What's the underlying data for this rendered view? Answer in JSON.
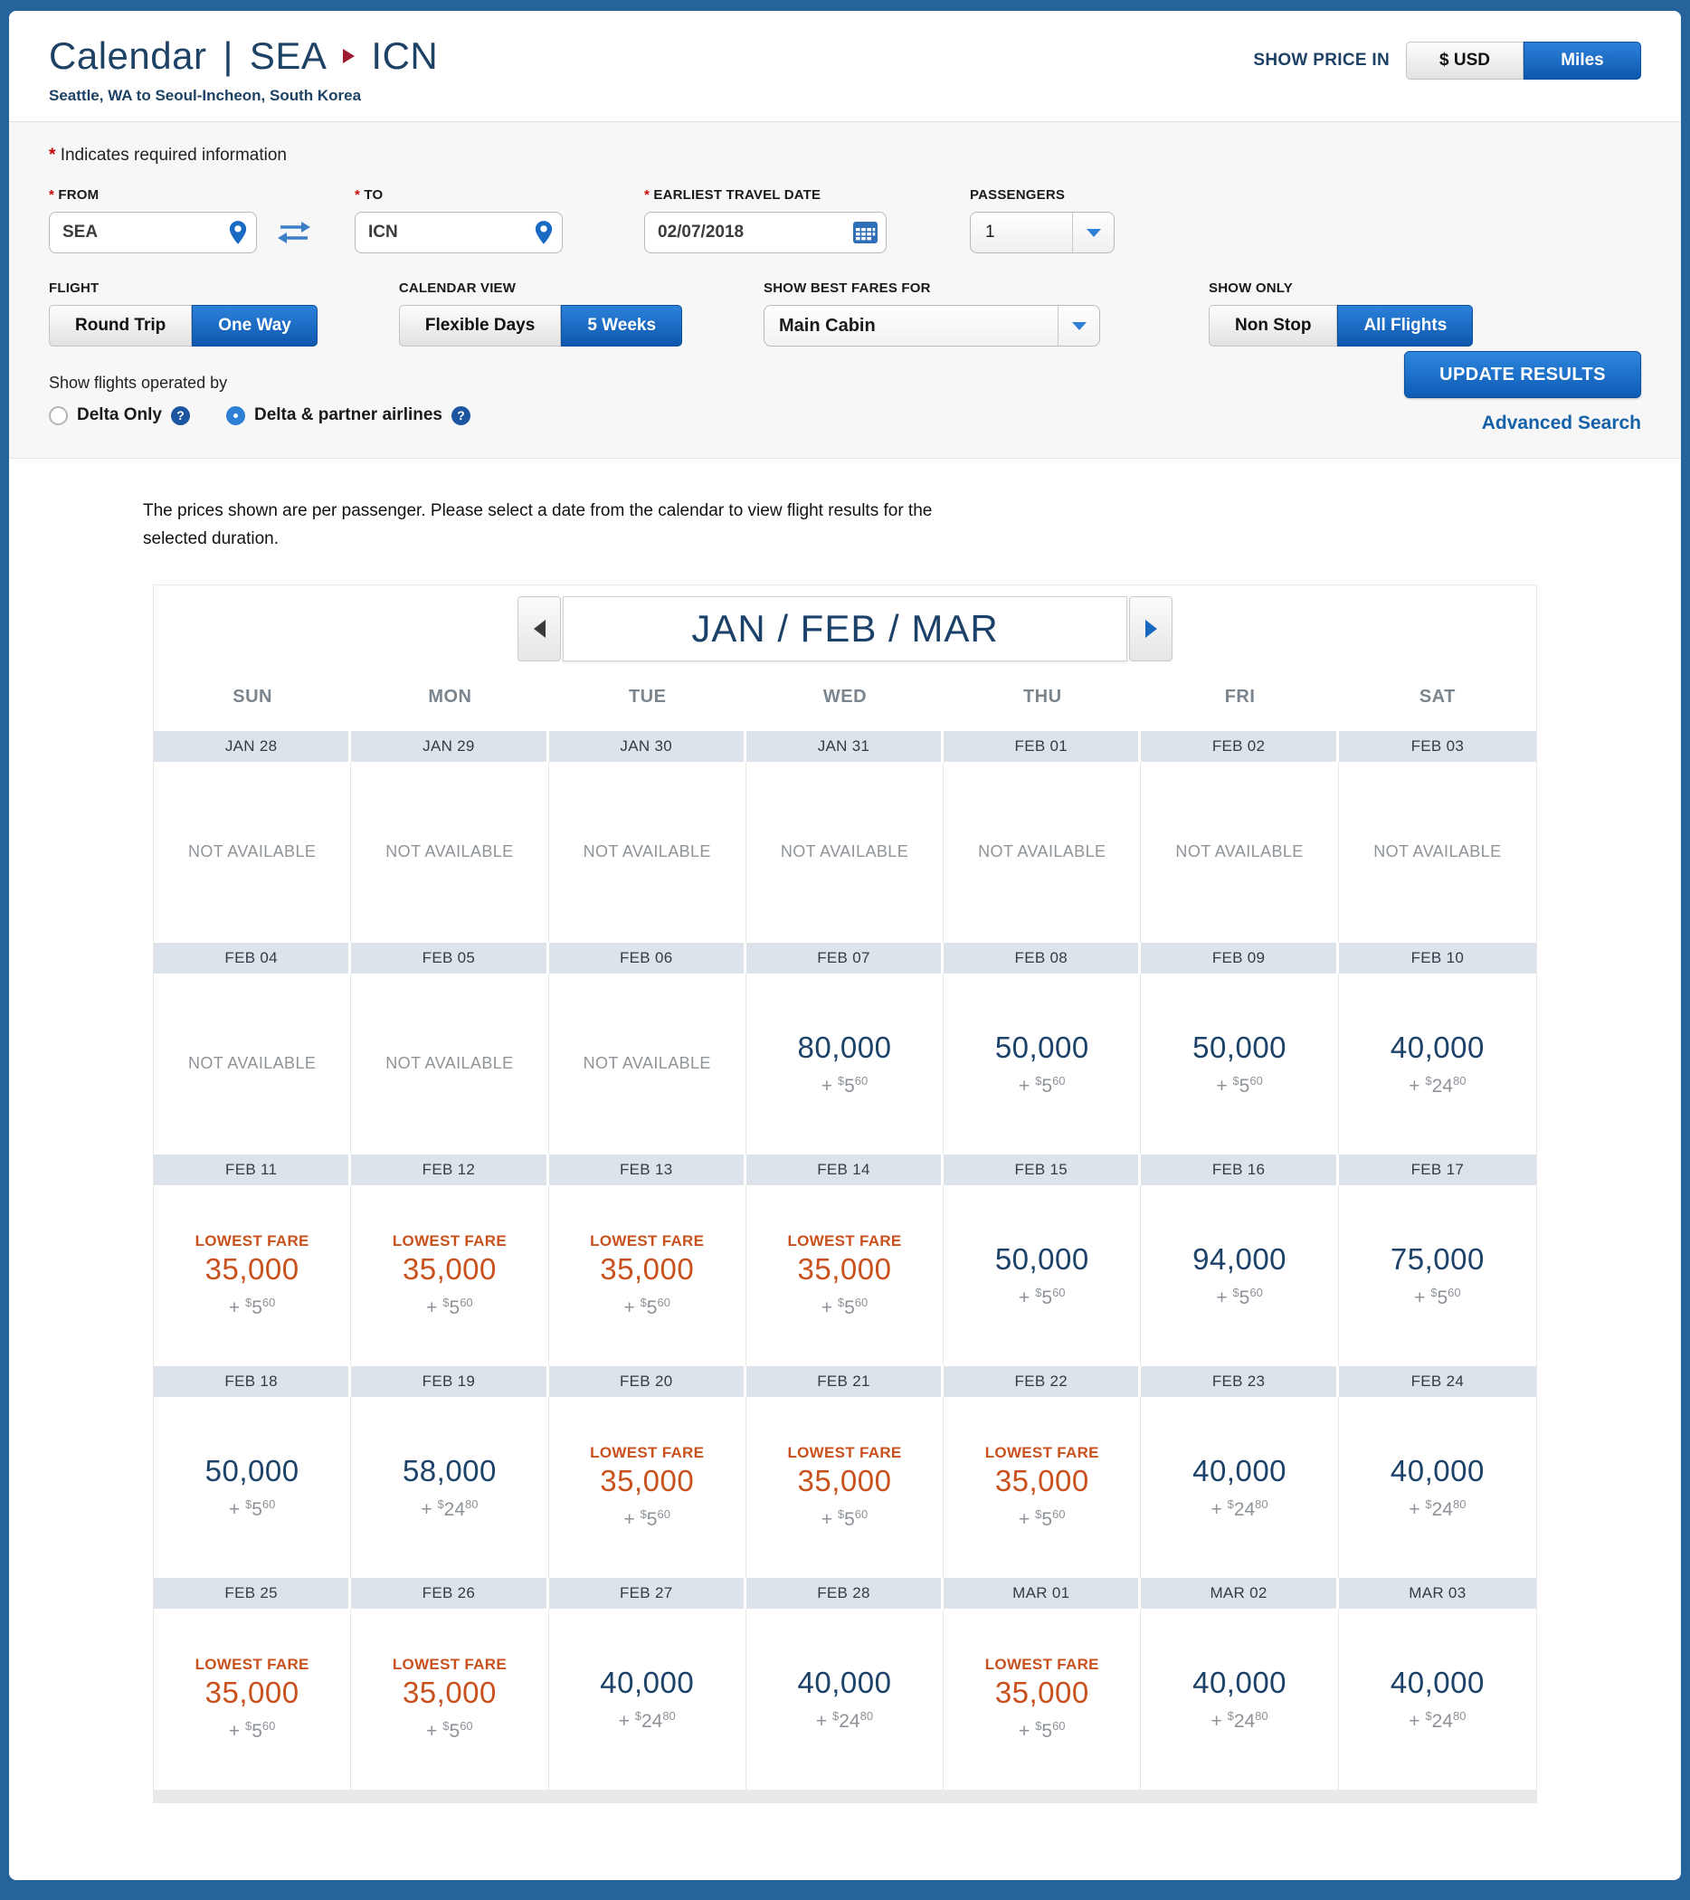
{
  "page": {
    "title_prefix": "Calendar",
    "title_separator": "|",
    "origin": "SEA",
    "destination": "ICN",
    "subtitle": "Seattle, WA to Seoul-Incheon, South Korea"
  },
  "price_toggle": {
    "label": "SHOW PRICE IN",
    "usd_label": "$ USD",
    "miles_label": "Miles",
    "selected": "Miles"
  },
  "form": {
    "required_marker": "*",
    "required_note": "Indicates required information",
    "from": {
      "label": "FROM",
      "value": "SEA"
    },
    "to": {
      "label": "TO",
      "value": "ICN"
    },
    "earliest_travel_date": {
      "label": "EARLIEST TRAVEL DATE",
      "value": "02/07/2018"
    },
    "passengers": {
      "label": "PASSENGERS",
      "value": "1"
    },
    "flight": {
      "label": "FLIGHT",
      "options": [
        "Round Trip",
        "One Way"
      ],
      "selected": "One Way"
    },
    "calendar_view": {
      "label": "CALENDAR VIEW",
      "options": [
        "Flexible Days",
        "5 Weeks"
      ],
      "selected": "5 Weeks"
    },
    "show_best_fares_for": {
      "label": "SHOW BEST FARES FOR",
      "value": "Main Cabin"
    },
    "show_only": {
      "label": "SHOW ONLY",
      "options": [
        "Non Stop",
        "All Flights"
      ],
      "selected": "All Flights"
    },
    "operated_by": {
      "label": "Show flights operated by",
      "options": [
        {
          "label": "Delta Only",
          "selected": false
        },
        {
          "label": "Delta & partner airlines",
          "selected": true
        }
      ]
    },
    "update_button": "UPDATE RESULTS",
    "advanced_search": "Advanced Search"
  },
  "notice": "The prices shown are per passenger. Please select a date from the calendar to view flight results for the selected duration.",
  "calendar": {
    "month_label": "JAN / FEB / MAR",
    "day_headers": [
      "SUN",
      "MON",
      "TUE",
      "WED",
      "THU",
      "FRI",
      "SAT"
    ],
    "not_available_label": "NOT AVAILABLE",
    "lowest_fare_label": "LOWEST FARE",
    "weeks": [
      {
        "dates": [
          "JAN 28",
          "JAN 29",
          "JAN 30",
          "JAN 31",
          "FEB 01",
          "FEB 02",
          "FEB 03"
        ],
        "fares": [
          {
            "na": true
          },
          {
            "na": true
          },
          {
            "na": true
          },
          {
            "na": true
          },
          {
            "na": true
          },
          {
            "na": true
          },
          {
            "na": true
          }
        ]
      },
      {
        "dates": [
          "FEB 04",
          "FEB 05",
          "FEB 06",
          "FEB 07",
          "FEB 08",
          "FEB 09",
          "FEB 10"
        ],
        "fares": [
          {
            "na": true
          },
          {
            "na": true
          },
          {
            "na": true
          },
          {
            "miles": "80,000",
            "tax_dollars": "5",
            "tax_cents": "60",
            "lowest": false
          },
          {
            "miles": "50,000",
            "tax_dollars": "5",
            "tax_cents": "60",
            "lowest": false
          },
          {
            "miles": "50,000",
            "tax_dollars": "5",
            "tax_cents": "60",
            "lowest": false
          },
          {
            "miles": "40,000",
            "tax_dollars": "24",
            "tax_cents": "80",
            "lowest": false
          }
        ]
      },
      {
        "dates": [
          "FEB 11",
          "FEB 12",
          "FEB 13",
          "FEB 14",
          "FEB 15",
          "FEB 16",
          "FEB 17"
        ],
        "fares": [
          {
            "miles": "35,000",
            "tax_dollars": "5",
            "tax_cents": "60",
            "lowest": true
          },
          {
            "miles": "35,000",
            "tax_dollars": "5",
            "tax_cents": "60",
            "lowest": true
          },
          {
            "miles": "35,000",
            "tax_dollars": "5",
            "tax_cents": "60",
            "lowest": true
          },
          {
            "miles": "35,000",
            "tax_dollars": "5",
            "tax_cents": "60",
            "lowest": true
          },
          {
            "miles": "50,000",
            "tax_dollars": "5",
            "tax_cents": "60",
            "lowest": false
          },
          {
            "miles": "94,000",
            "tax_dollars": "5",
            "tax_cents": "60",
            "lowest": false
          },
          {
            "miles": "75,000",
            "tax_dollars": "5",
            "tax_cents": "60",
            "lowest": false
          }
        ]
      },
      {
        "dates": [
          "FEB 18",
          "FEB 19",
          "FEB 20",
          "FEB 21",
          "FEB 22",
          "FEB 23",
          "FEB 24"
        ],
        "fares": [
          {
            "miles": "50,000",
            "tax_dollars": "5",
            "tax_cents": "60",
            "lowest": false
          },
          {
            "miles": "58,000",
            "tax_dollars": "24",
            "tax_cents": "80",
            "lowest": false
          },
          {
            "miles": "35,000",
            "tax_dollars": "5",
            "tax_cents": "60",
            "lowest": true
          },
          {
            "miles": "35,000",
            "tax_dollars": "5",
            "tax_cents": "60",
            "lowest": true
          },
          {
            "miles": "35,000",
            "tax_dollars": "5",
            "tax_cents": "60",
            "lowest": true
          },
          {
            "miles": "40,000",
            "tax_dollars": "24",
            "tax_cents": "80",
            "lowest": false
          },
          {
            "miles": "40,000",
            "tax_dollars": "24",
            "tax_cents": "80",
            "lowest": false
          }
        ]
      },
      {
        "dates": [
          "FEB 25",
          "FEB 26",
          "FEB 27",
          "FEB 28",
          "MAR 01",
          "MAR 02",
          "MAR 03"
        ],
        "fares": [
          {
            "miles": "35,000",
            "tax_dollars": "5",
            "tax_cents": "60",
            "lowest": true
          },
          {
            "miles": "35,000",
            "tax_dollars": "5",
            "tax_cents": "60",
            "lowest": true
          },
          {
            "miles": "40,000",
            "tax_dollars": "24",
            "tax_cents": "80",
            "lowest": false
          },
          {
            "miles": "40,000",
            "tax_dollars": "24",
            "tax_cents": "80",
            "lowest": false
          },
          {
            "miles": "35,000",
            "tax_dollars": "5",
            "tax_cents": "60",
            "lowest": true
          },
          {
            "miles": "40,000",
            "tax_dollars": "24",
            "tax_cents": "80",
            "lowest": false
          },
          {
            "miles": "40,000",
            "tax_dollars": "24",
            "tax_cents": "80",
            "lowest": false
          }
        ]
      }
    ]
  },
  "colors": {
    "frame_blue": "#27639b",
    "navy": "#1d4265",
    "accent_blue": "#0e57ae",
    "lowest_fare_orange": "#c9511d",
    "miles_navy": "#1c4269",
    "tax_gray": "#8d9298",
    "date_header_bg": "#dde3ea"
  }
}
